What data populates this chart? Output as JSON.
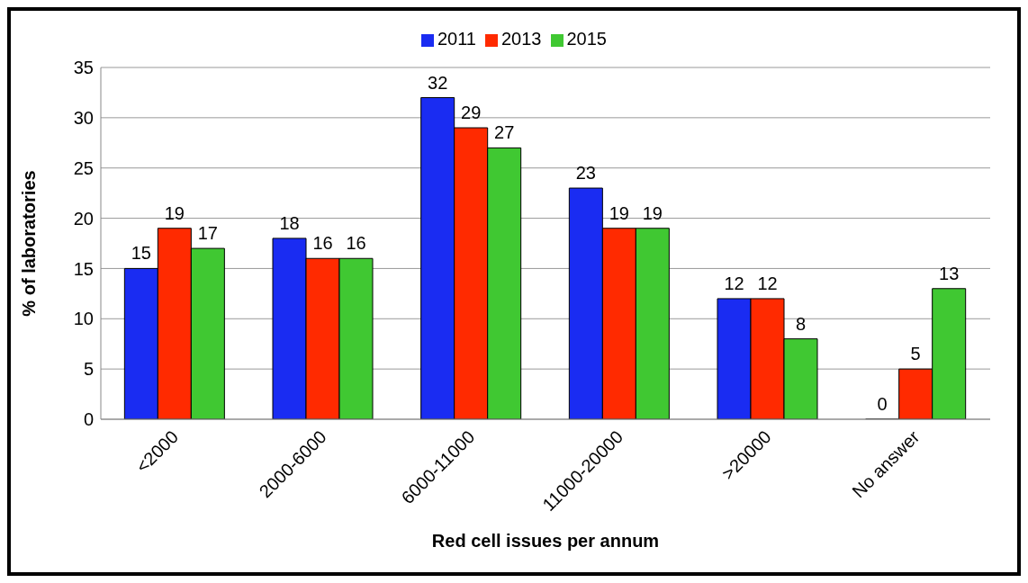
{
  "chart_data": {
    "type": "bar",
    "xlabel": "Red cell issues per annum",
    "ylabel": "% of laboratories",
    "categories": [
      "<2000",
      "2000-6000",
      "6000-11000",
      "11000-20000",
      ">20000",
      "No answer"
    ],
    "series": [
      {
        "name": "2011",
        "color": "#1a2cf2",
        "values": [
          15,
          18,
          32,
          23,
          12,
          0
        ]
      },
      {
        "name": "2013",
        "color": "#ff2a00",
        "values": [
          19,
          16,
          29,
          19,
          12,
          5
        ]
      },
      {
        "name": "2015",
        "color": "#40c832",
        "values": [
          17,
          16,
          27,
          19,
          8,
          13
        ]
      }
    ],
    "ylim": [
      0,
      35
    ],
    "yticks": [
      0,
      5,
      10,
      15,
      20,
      25,
      30,
      35
    ],
    "grid": "y",
    "legend": "top",
    "data_labels": true
  }
}
